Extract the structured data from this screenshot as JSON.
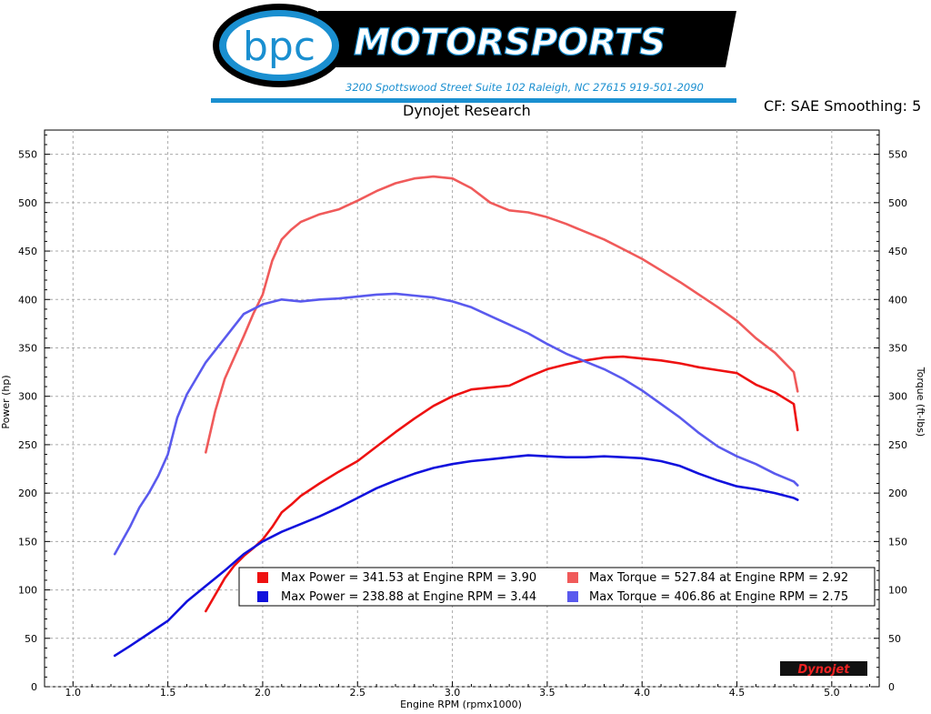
{
  "header": {
    "logo_initials": "bpc",
    "logo_wordmark": "MOTORSPORTS",
    "address": "3200 Spottswood Street Suite 102 Raleigh, NC 27615  919-501-2090",
    "dyno_vendor": "Dynojet Research",
    "cf_info": "CF: SAE Smoothing: 5",
    "watermark": "Dynojet"
  },
  "colors": {
    "accent_blue": "#1a8fd0",
    "run1": "#ee1111",
    "run1_light": "#f05a5a",
    "run2": "#1111dd",
    "run2_light": "#5a5aee"
  },
  "chart_data": {
    "type": "line",
    "xlabel": "Engine RPM (rpmx1000)",
    "ylabel_left": "Power (hp)",
    "ylabel_right": "Torque (ft-lbs)",
    "xlim": [
      0.85,
      5.25
    ],
    "ylim": [
      0,
      575
    ],
    "x_ticks": [
      "1.0",
      "1.5",
      "2.0",
      "2.5",
      "3.0",
      "3.5",
      "4.0",
      "4.5",
      "5.0"
    ],
    "y_ticks": [
      "0",
      "50",
      "100",
      "150",
      "200",
      "250",
      "300",
      "350",
      "400",
      "450",
      "500",
      "550"
    ],
    "grid": true,
    "legend_position": "bottom-right",
    "legend": [
      "Max Power = 341.53 at Engine RPM = 3.90",
      "Max Torque = 527.84 at Engine RPM = 2.92",
      "Max Power = 238.88 at Engine RPM = 3.44",
      "Max Torque = 406.86 at Engine RPM = 2.75"
    ],
    "series": [
      {
        "role": "power-run-1",
        "color": "#ee1111",
        "x": [
          1.7,
          1.75,
          1.8,
          1.85,
          1.9,
          1.95,
          2.0,
          2.05,
          2.1,
          2.15,
          2.2,
          2.3,
          2.4,
          2.5,
          2.6,
          2.7,
          2.8,
          2.9,
          3.0,
          3.1,
          3.2,
          3.3,
          3.4,
          3.5,
          3.6,
          3.7,
          3.8,
          3.9,
          4.0,
          4.1,
          4.2,
          4.3,
          4.4,
          4.5,
          4.6,
          4.7,
          4.8,
          4.82
        ],
        "y": [
          78,
          95,
          112,
          125,
          135,
          143,
          152,
          165,
          180,
          188,
          197,
          210,
          222,
          233,
          248,
          263,
          277,
          290,
          300,
          307,
          309,
          311,
          320,
          328,
          333,
          337,
          340,
          341,
          339,
          337,
          334,
          330,
          327,
          324,
          312,
          304,
          292,
          265
        ]
      },
      {
        "role": "torque-run-1",
        "color": "#f05a5a",
        "x": [
          1.7,
          1.75,
          1.8,
          1.85,
          1.9,
          1.95,
          2.0,
          2.05,
          2.1,
          2.15,
          2.2,
          2.3,
          2.4,
          2.5,
          2.6,
          2.7,
          2.8,
          2.9,
          3.0,
          3.1,
          3.2,
          3.3,
          3.4,
          3.5,
          3.6,
          3.7,
          3.8,
          3.9,
          4.0,
          4.1,
          4.2,
          4.3,
          4.4,
          4.5,
          4.6,
          4.7,
          4.8,
          4.82
        ],
        "y": [
          242,
          285,
          318,
          340,
          362,
          385,
          405,
          440,
          462,
          472,
          480,
          488,
          493,
          502,
          512,
          520,
          525,
          527,
          525,
          515,
          500,
          492,
          490,
          485,
          478,
          470,
          462,
          452,
          442,
          430,
          418,
          405,
          392,
          378,
          360,
          345,
          325,
          305
        ]
      },
      {
        "role": "power-run-2",
        "color": "#1111dd",
        "x": [
          1.22,
          1.3,
          1.4,
          1.5,
          1.6,
          1.7,
          1.8,
          1.9,
          2.0,
          2.1,
          2.2,
          2.3,
          2.4,
          2.5,
          2.6,
          2.7,
          2.8,
          2.9,
          3.0,
          3.1,
          3.2,
          3.3,
          3.4,
          3.5,
          3.6,
          3.7,
          3.8,
          3.9,
          4.0,
          4.1,
          4.2,
          4.3,
          4.4,
          4.5,
          4.6,
          4.7,
          4.8,
          4.82
        ],
        "y": [
          32,
          42,
          55,
          68,
          88,
          104,
          120,
          137,
          150,
          160,
          168,
          176,
          185,
          195,
          205,
          213,
          220,
          226,
          230,
          233,
          235,
          237,
          239,
          238,
          237,
          237,
          238,
          237,
          236,
          233,
          228,
          220,
          213,
          207,
          204,
          200,
          195,
          193
        ]
      },
      {
        "role": "torque-run-2",
        "color": "#5a5aee",
        "x": [
          1.22,
          1.3,
          1.35,
          1.4,
          1.45,
          1.5,
          1.55,
          1.6,
          1.7,
          1.8,
          1.9,
          2.0,
          2.1,
          2.2,
          2.3,
          2.4,
          2.5,
          2.6,
          2.7,
          2.8,
          2.9,
          3.0,
          3.1,
          3.2,
          3.3,
          3.4,
          3.5,
          3.6,
          3.7,
          3.8,
          3.9,
          4.0,
          4.1,
          4.2,
          4.3,
          4.4,
          4.5,
          4.6,
          4.7,
          4.8,
          4.82
        ],
        "y": [
          137,
          165,
          185,
          200,
          218,
          240,
          278,
          302,
          335,
          360,
          385,
          395,
          400,
          398,
          400,
          401,
          403,
          405,
          406,
          404,
          402,
          398,
          392,
          383,
          374,
          365,
          354,
          344,
          336,
          328,
          318,
          306,
          292,
          278,
          262,
          248,
          238,
          230,
          220,
          212,
          208
        ]
      }
    ]
  }
}
